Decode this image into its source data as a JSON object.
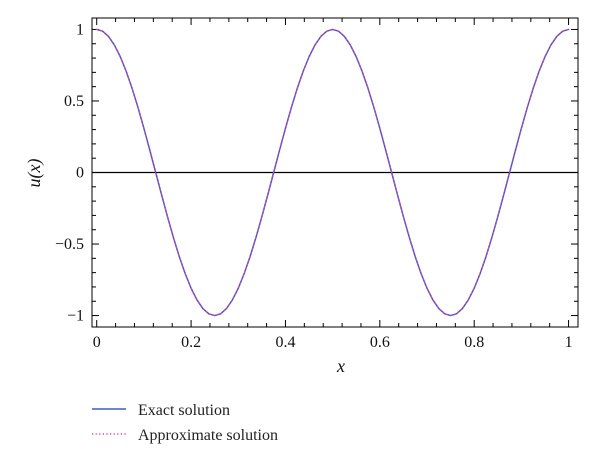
{
  "chart_data": {
    "type": "line",
    "title": "",
    "xlabel": "x",
    "ylabel": "u(x)",
    "xlim": [
      -0.01,
      1.02
    ],
    "ylim": [
      -1.08,
      1.08
    ],
    "x_ticks": [
      0,
      0.2,
      0.4,
      0.6,
      0.8,
      1
    ],
    "x_tick_labels": [
      "0",
      "0.2",
      "0.4",
      "0.6",
      "0.8",
      "1"
    ],
    "y_ticks": [
      -1,
      -0.5,
      0,
      0.5,
      1
    ],
    "y_tick_labels": [
      "−1",
      "−0.5",
      "0",
      "0.5",
      "1"
    ],
    "grid": false,
    "legend_position": "bottom-left",
    "reference_line": {
      "y": 0,
      "color": "#000000"
    },
    "series": [
      {
        "name": "Exact solution",
        "color": "#3b5cc4",
        "style": "solid",
        "x": [
          0,
          0.0125,
          0.025,
          0.0375,
          0.05,
          0.0625,
          0.075,
          0.0875,
          0.1,
          0.1125,
          0.125,
          0.1375,
          0.15,
          0.1625,
          0.175,
          0.1875,
          0.2,
          0.2125,
          0.225,
          0.2375,
          0.25,
          0.2625,
          0.275,
          0.2875,
          0.3,
          0.3125,
          0.325,
          0.3375,
          0.35,
          0.3625,
          0.375,
          0.3875,
          0.4,
          0.4125,
          0.425,
          0.4375,
          0.45,
          0.4625,
          0.475,
          0.4875,
          0.5,
          0.5125,
          0.525,
          0.5375,
          0.55,
          0.5625,
          0.575,
          0.5875,
          0.6,
          0.6125,
          0.625,
          0.6375,
          0.65,
          0.6625,
          0.675,
          0.6875,
          0.7,
          0.7125,
          0.725,
          0.7375,
          0.75,
          0.7625,
          0.775,
          0.7875,
          0.8,
          0.8125,
          0.825,
          0.8375,
          0.85,
          0.8625,
          0.875,
          0.8875,
          0.9,
          0.9125,
          0.925,
          0.9375,
          0.95,
          0.9625,
          0.975,
          0.9875,
          1.0
        ],
        "y": [
          1.0,
          0.9877,
          0.9511,
          0.891,
          0.809,
          0.7071,
          0.5878,
          0.454,
          0.309,
          0.1564,
          0.0,
          -0.1564,
          -0.309,
          -0.454,
          -0.5878,
          -0.7071,
          -0.809,
          -0.891,
          -0.9511,
          -0.9877,
          -1.0,
          -0.9877,
          -0.9511,
          -0.891,
          -0.809,
          -0.7071,
          -0.5878,
          -0.454,
          -0.309,
          -0.1564,
          0.0,
          0.1564,
          0.309,
          0.454,
          0.5878,
          0.7071,
          0.809,
          0.891,
          0.9511,
          0.9877,
          1.0,
          0.9877,
          0.9511,
          0.891,
          0.809,
          0.7071,
          0.5878,
          0.454,
          0.309,
          0.1564,
          0.0,
          -0.1564,
          -0.309,
          -0.454,
          -0.5878,
          -0.7071,
          -0.809,
          -0.891,
          -0.9511,
          -0.9877,
          -1.0,
          -0.9877,
          -0.9511,
          -0.891,
          -0.809,
          -0.7071,
          -0.5878,
          -0.454,
          -0.309,
          -0.1564,
          0.0,
          0.1564,
          0.309,
          0.454,
          0.5878,
          0.7071,
          0.809,
          0.891,
          0.9511,
          0.9877,
          1.0
        ]
      },
      {
        "name": "Approximate solution",
        "color": "#e0409a",
        "style": "dotted",
        "x": [
          0,
          0.0125,
          0.025,
          0.0375,
          0.05,
          0.0625,
          0.075,
          0.0875,
          0.1,
          0.1125,
          0.125,
          0.1375,
          0.15,
          0.1625,
          0.175,
          0.1875,
          0.2,
          0.2125,
          0.225,
          0.2375,
          0.25,
          0.2625,
          0.275,
          0.2875,
          0.3,
          0.3125,
          0.325,
          0.3375,
          0.35,
          0.3625,
          0.375,
          0.3875,
          0.4,
          0.4125,
          0.425,
          0.4375,
          0.45,
          0.4625,
          0.475,
          0.4875,
          0.5,
          0.5125,
          0.525,
          0.5375,
          0.55,
          0.5625,
          0.575,
          0.5875,
          0.6,
          0.6125,
          0.625,
          0.6375,
          0.65,
          0.6625,
          0.675,
          0.6875,
          0.7,
          0.7125,
          0.725,
          0.7375,
          0.75,
          0.7625,
          0.775,
          0.7875,
          0.8,
          0.8125,
          0.825,
          0.8375,
          0.85,
          0.8625,
          0.875,
          0.8875,
          0.9,
          0.9125,
          0.925,
          0.9375,
          0.95,
          0.9625,
          0.975,
          0.9875,
          1.0
        ],
        "y": [
          1.0,
          0.9877,
          0.9511,
          0.891,
          0.809,
          0.7071,
          0.5878,
          0.454,
          0.309,
          0.1564,
          0.0,
          -0.1564,
          -0.309,
          -0.454,
          -0.5878,
          -0.7071,
          -0.809,
          -0.891,
          -0.9511,
          -0.9877,
          -1.0,
          -0.9877,
          -0.9511,
          -0.891,
          -0.809,
          -0.7071,
          -0.5878,
          -0.454,
          -0.309,
          -0.1564,
          0.0,
          0.1564,
          0.309,
          0.454,
          0.5878,
          0.7071,
          0.809,
          0.891,
          0.9511,
          0.9877,
          1.0,
          0.9877,
          0.9511,
          0.891,
          0.809,
          0.7071,
          0.5878,
          0.454,
          0.309,
          0.1564,
          0.0,
          -0.1564,
          -0.309,
          -0.454,
          -0.5878,
          -0.7071,
          -0.809,
          -0.891,
          -0.9511,
          -0.9877,
          -1.0,
          -0.9877,
          -0.9511,
          -0.891,
          -0.809,
          -0.7071,
          -0.5878,
          -0.454,
          -0.309,
          -0.1564,
          0.0,
          0.1564,
          0.309,
          0.454,
          0.5878,
          0.7071,
          0.809,
          0.891,
          0.9511,
          0.9877,
          1.0
        ]
      }
    ]
  }
}
